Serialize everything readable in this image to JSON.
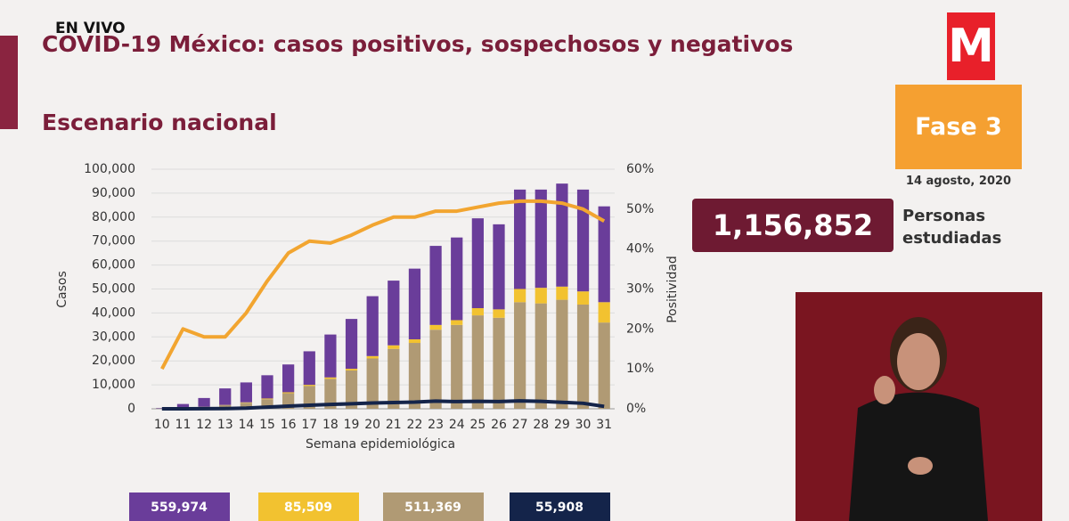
{
  "overlay": {
    "live": "EN VIVO",
    "title": "COVID-19 México: casos positivos, sospechosos y negativos",
    "subtitle": "Escenario nacional",
    "logo": "M",
    "phase": "Fase 3",
    "date": "14 agosto, 2020",
    "studied_value": "1,156,852",
    "studied_label": "Personas estudiadas"
  },
  "chart_data": {
    "type": "bar",
    "stacked": true,
    "categories": [
      "10",
      "11",
      "12",
      "13",
      "14",
      "15",
      "16",
      "17",
      "18",
      "19",
      "20",
      "21",
      "22",
      "23",
      "24",
      "25",
      "26",
      "27",
      "28",
      "29",
      "30",
      "31"
    ],
    "x_label": "Semana epidemiológica",
    "y_label": "Casos",
    "y2_label": "Positividad",
    "ylim": [
      0,
      100000
    ],
    "yticks": [
      0,
      {
        "value": 10000,
        "label": "10,000"
      },
      {
        "value": 20000,
        "label": "20,000"
      },
      {
        "value": 30000,
        "label": "30,000"
      },
      {
        "value": 40000,
        "label": "40,000"
      },
      {
        "value": 50000,
        "label": "50,000"
      },
      {
        "value": 60000,
        "label": "60,000"
      },
      {
        "value": 70000,
        "label": "70,000"
      },
      {
        "value": 80000,
        "label": "80,000"
      },
      {
        "value": 90000,
        "label": "90,000"
      },
      {
        "value": 100000,
        "label": "100,000"
      }
    ],
    "y2lim": [
      0,
      60
    ],
    "y2ticks": [
      {
        "value": 0,
        "label": "0%"
      },
      {
        "value": 10,
        "label": "10%"
      },
      {
        "value": 20,
        "label": "20%"
      },
      {
        "value": 30,
        "label": "30%"
      },
      {
        "value": 40,
        "label": "40%"
      },
      {
        "value": 50,
        "label": "50%"
      },
      {
        "value": 60,
        "label": "60%"
      }
    ],
    "grid": true,
    "series": [
      {
        "type": "bar",
        "color": "#b09a74",
        "values": [
          100,
          300,
          800,
          1500,
          2500,
          4000,
          6500,
          9500,
          12500,
          16000,
          21000,
          25000,
          27500,
          33000,
          35000,
          39000,
          38000,
          44500,
          44000,
          45500,
          43500,
          36000
        ]
      },
      {
        "type": "bar",
        "color": "#f2c230",
        "values": [
          0,
          0,
          50,
          100,
          200,
          300,
          400,
          500,
          600,
          700,
          1000,
          1500,
          1500,
          2000,
          2000,
          3000,
          3500,
          5500,
          6500,
          5500,
          5500,
          8500
        ]
      },
      {
        "type": "bar",
        "color": "#6a3d9a",
        "values": [
          200,
          1700,
          3650,
          6900,
          8300,
          9700,
          11600,
          14000,
          17900,
          20800,
          25000,
          27000,
          29500,
          33000,
          34500,
          37500,
          35500,
          41500,
          41000,
          43000,
          42500,
          40000
        ]
      },
      {
        "type": "line",
        "axis": "y2",
        "color": "#f2a530",
        "values": [
          10,
          20,
          18,
          18,
          24,
          32,
          39,
          42,
          41.5,
          43.5,
          46,
          48,
          48,
          49.5,
          49.5,
          50.5,
          51.5,
          52,
          52,
          51.5,
          50,
          47
        ]
      },
      {
        "type": "line",
        "color": "#14244a",
        "values": [
          0,
          0,
          30,
          100,
          300,
          700,
          1100,
          1500,
          1800,
          2100,
          2400,
          2600,
          2800,
          3200,
          3000,
          3100,
          3000,
          3300,
          3100,
          2700,
          2300,
          1000
        ]
      }
    ],
    "totals": [
      {
        "label": "559,974",
        "color": "#6a3d9a"
      },
      {
        "label": "85,509",
        "color": "#f2c230"
      },
      {
        "label": "511,369",
        "color": "#b09a74"
      },
      {
        "label": "55,908",
        "color": "#14244a"
      }
    ]
  }
}
